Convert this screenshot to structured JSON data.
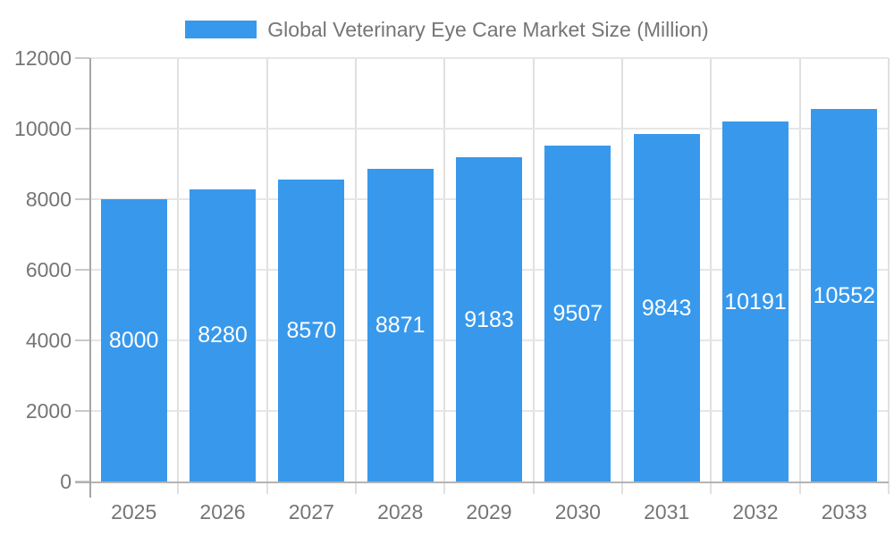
{
  "chart_data": {
    "type": "bar",
    "title": "Global Veterinary Eye Care Market Size (Million)",
    "categories": [
      "2025",
      "2026",
      "2027",
      "2028",
      "2029",
      "2030",
      "2031",
      "2032",
      "2033"
    ],
    "values": [
      8000,
      8280,
      8570,
      8871,
      9183,
      9507,
      9843,
      10191,
      10552
    ],
    "xlabel": "",
    "ylabel": "",
    "ylim": [
      0,
      12000
    ],
    "yticks": [
      0,
      2000,
      4000,
      6000,
      8000,
      10000,
      12000
    ],
    "grid": true,
    "legend_position": "top",
    "value_labels_position": "inside-center",
    "colors": {
      "bar": "#3899ec",
      "bar_value_label": "#ffffff",
      "axis_text": "#757575",
      "legend_text": "#757575",
      "gridline_h": "#e6e6e6",
      "gridline_v": "#e0e0e0",
      "x_axis_line": "#b3b3b3",
      "y_axis_line": "#a6a6a6",
      "tick": "#c9c9c9",
      "background": "#ffffff"
    }
  }
}
